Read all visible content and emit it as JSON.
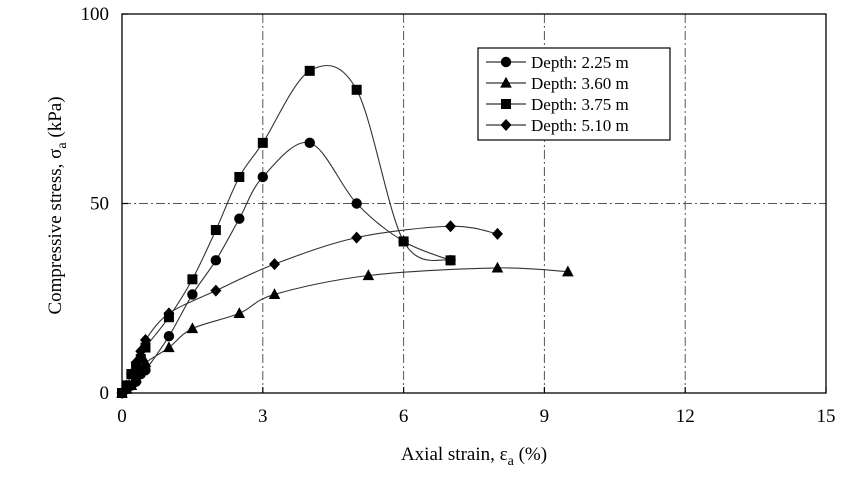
{
  "chart_data": {
    "type": "scatter",
    "title": "",
    "xlabel_main": "Axial strain, ε",
    "xlabel_sub": "a",
    "xlabel_unit": " (%)",
    "ylabel_main": "Compressive stress, σ",
    "ylabel_sub": "a",
    "ylabel_unit": " (kPa)",
    "xlim": [
      0,
      15
    ],
    "ylim": [
      0,
      100
    ],
    "xticks": [
      0,
      3,
      6,
      9,
      12,
      15
    ],
    "yticks": [
      0,
      50,
      100
    ],
    "xtick_labels": [
      "0",
      "3",
      "6",
      "9",
      "12",
      "15"
    ],
    "ytick_labels": [
      "0",
      "50",
      "100"
    ],
    "grid": "dash-dot at x = 3, 6, 9, 12 and y = 50",
    "legend_position": "top-right",
    "series": [
      {
        "name": "Depth: 2.25 m",
        "marker": "circle",
        "x": [
          0,
          0.1,
          0.2,
          0.3,
          0.4,
          0.5,
          1.0,
          1.5,
          2.0,
          2.5,
          3.0,
          4.0,
          5.0,
          6.0,
          7.0
        ],
        "y": [
          0,
          1,
          2,
          3,
          5,
          6,
          15,
          26,
          35,
          46,
          57,
          66,
          50,
          40,
          35
        ]
      },
      {
        "name": "Depth: 3.60 m",
        "marker": "triangle",
        "x": [
          0,
          0.1,
          0.2,
          0.3,
          0.4,
          0.5,
          1.0,
          1.5,
          2.5,
          3.25,
          5.25,
          8.0,
          9.5
        ],
        "y": [
          0,
          1,
          2,
          4,
          6,
          8,
          12,
          17,
          21,
          26,
          31,
          33,
          32
        ]
      },
      {
        "name": "Depth: 3.75 m",
        "marker": "square",
        "x": [
          0,
          0.1,
          0.2,
          0.3,
          0.4,
          0.5,
          1.0,
          1.5,
          2.0,
          2.5,
          3.0,
          4.0,
          5.0,
          6.0,
          7.0
        ],
        "y": [
          0,
          2,
          5,
          7,
          9,
          12,
          20,
          30,
          43,
          57,
          66,
          85,
          80,
          40,
          35
        ]
      },
      {
        "name": "Depth: 5.10 m",
        "marker": "diamond",
        "x": [
          0,
          0.1,
          0.2,
          0.3,
          0.4,
          0.5,
          1.0,
          2.0,
          3.25,
          5.0,
          7.0,
          8.0
        ],
        "y": [
          0,
          2,
          5,
          8,
          11,
          14,
          21,
          27,
          34,
          41,
          44,
          42
        ]
      }
    ]
  }
}
